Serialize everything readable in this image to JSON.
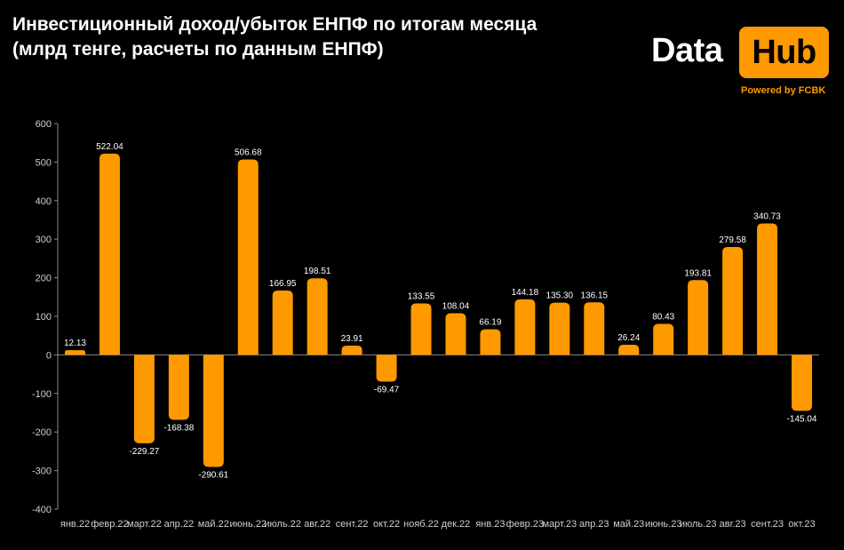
{
  "title": {
    "line1": "Инвестиционный доход/убыток ЕНПФ по итогам месяца",
    "line2": "(млрд тенге, расчеты по данным ЕНПФ)"
  },
  "logo": {
    "word1": "Data",
    "word2": "Hub",
    "tagline": "Powered by FCBK"
  },
  "colors": {
    "background": "#000000",
    "bar": "#ff9900",
    "text": "#ffffff",
    "axis": "#cfcfcf"
  },
  "chart_data": {
    "type": "bar",
    "categories": [
      "янв.22",
      "февр.22",
      "март.22",
      "апр.22",
      "май.22",
      "июнь.22",
      "июль.22",
      "авг.22",
      "сент.22",
      "окт.22",
      "нояб.22",
      "дек.22",
      "янв.23",
      "февр.23",
      "март.23",
      "апр.23",
      "май.23",
      "июнь.23",
      "июль.23",
      "авг.23",
      "сент.23",
      "окт.23"
    ],
    "values": [
      12.13,
      522.04,
      -229.27,
      -168.38,
      -290.61,
      506.68,
      166.95,
      198.51,
      23.91,
      -69.47,
      133.55,
      108.04,
      66.19,
      144.18,
      135.3,
      136.15,
      26.24,
      80.43,
      193.81,
      279.58,
      340.73,
      -145.04
    ],
    "value_labels": [
      "12.13",
      "522.04",
      "-229.27",
      "-168.38",
      "-290.61",
      "506.68",
      "166.95",
      "198.51",
      "23.91",
      "-69.47",
      "133.55",
      "108.04",
      "66.19",
      "144.18",
      "135.30",
      "136.15",
      "26.24",
      "80.43",
      "193.81",
      "279.58",
      "340.73",
      "-145.04"
    ],
    "y_ticks": [
      "600",
      "500",
      "400",
      "300",
      "200",
      "100",
      "0",
      "-100",
      "-200",
      "-300",
      "-400"
    ],
    "ylim": [
      -400,
      600
    ],
    "grid": false,
    "legend": "none"
  }
}
